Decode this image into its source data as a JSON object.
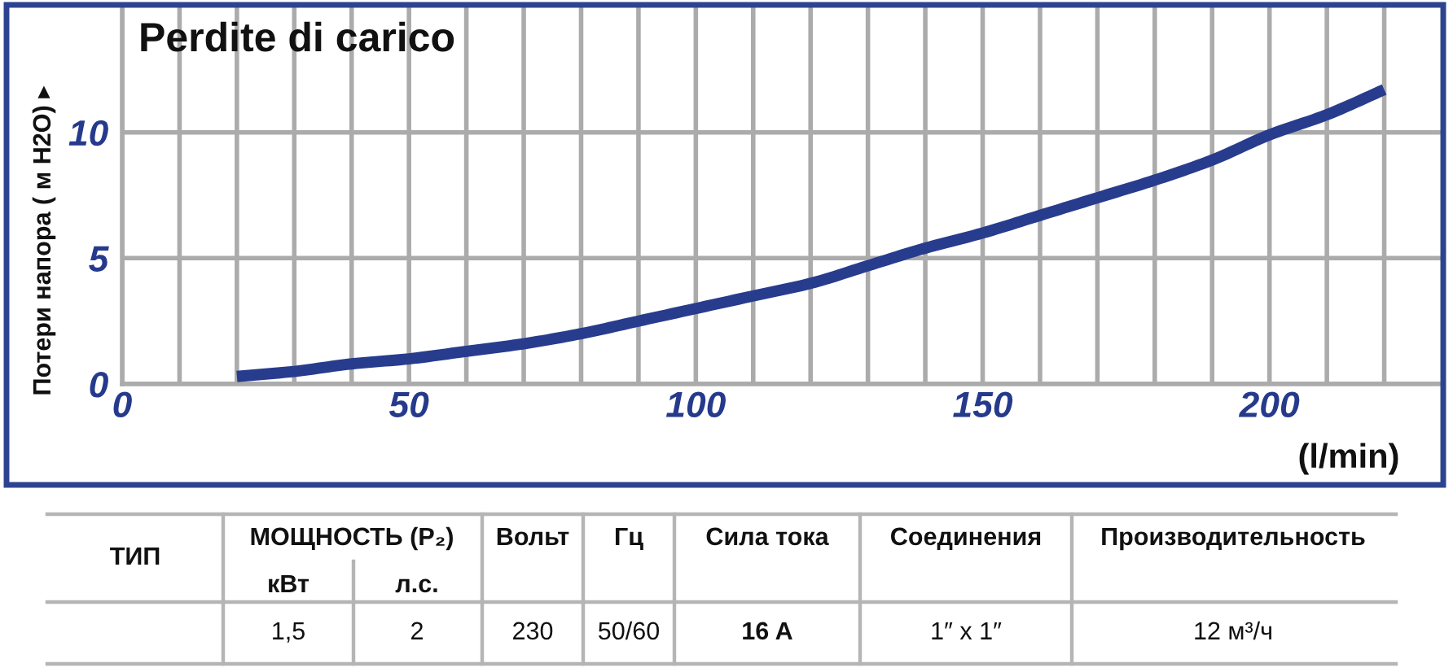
{
  "chart_data": {
    "type": "line",
    "title": "Perdite di carico",
    "xlabel": "(l/min)",
    "ylabel": "Потери напора ( м H2O) ▸",
    "x": [
      20,
      30,
      40,
      50,
      60,
      70,
      80,
      90,
      100,
      110,
      120,
      130,
      140,
      150,
      160,
      170,
      180,
      190,
      200,
      210,
      220
    ],
    "series": [
      {
        "color": "#283c8e",
        "values": [
          0.3,
          0.5,
          0.8,
          1.0,
          1.3,
          1.6,
          2.0,
          2.5,
          3.0,
          3.5,
          4.0,
          4.7,
          5.4,
          6.0,
          6.7,
          7.4,
          8.1,
          8.9,
          9.9,
          10.7,
          11.7
        ]
      }
    ],
    "xlim": [
      0,
      230
    ],
    "ylim": [
      0,
      15
    ],
    "xticks": [
      0,
      {
        "value": 10,
        "label": null
      },
      {
        "value": 20,
        "label": null
      },
      {
        "value": 30,
        "label": null
      },
      {
        "value": 40,
        "label": null
      },
      50,
      {
        "value": 60,
        "label": null
      },
      {
        "value": 70,
        "label": null
      },
      {
        "value": 80,
        "label": null
      },
      {
        "value": 90,
        "label": null
      },
      100,
      {
        "value": 110,
        "label": null
      },
      {
        "value": 120,
        "label": null
      },
      {
        "value": 130,
        "label": null
      },
      {
        "value": 140,
        "label": null
      },
      150,
      {
        "value": 160,
        "label": null
      },
      {
        "value": 170,
        "label": null
      },
      {
        "value": 180,
        "label": null
      },
      {
        "value": 190,
        "label": null
      },
      200,
      {
        "value": 210,
        "label": null
      },
      {
        "value": 220,
        "label": null
      }
    ],
    "yticks": [
      0,
      5,
      10
    ],
    "grid": true,
    "annotations": [
      "ТИП",
      "МОЩНОСТЬ (P₂)",
      "Вольт",
      "Гц",
      "Сила тока",
      "Соединения",
      "Производительность",
      "кВт",
      "л.с.",
      "1,5",
      "2",
      "230",
      "50/60",
      "16 A",
      "1″ x 1″",
      "12 м³/ч"
    ]
  }
}
